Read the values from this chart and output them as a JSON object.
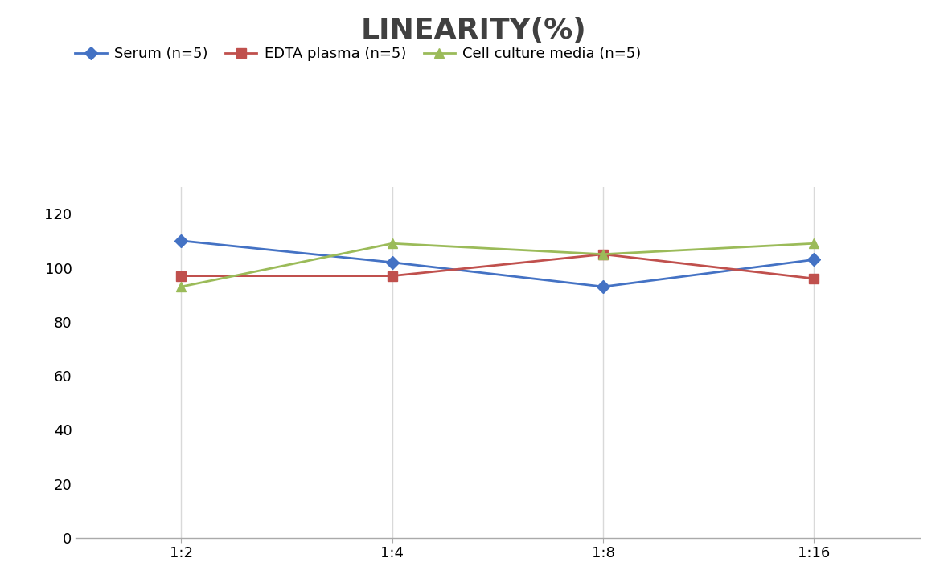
{
  "title": "LINEARITY(%)",
  "x_labels": [
    "1:2",
    "1:4",
    "1:8",
    "1:16"
  ],
  "x_positions": [
    0,
    1,
    2,
    3
  ],
  "series": [
    {
      "label": "Serum (n=5)",
      "values": [
        110,
        102,
        93,
        103
      ],
      "color": "#4472C4",
      "marker": "D",
      "markersize": 8
    },
    {
      "label": "EDTA plasma (n=5)",
      "values": [
        97,
        97,
        105,
        96
      ],
      "color": "#C0504D",
      "marker": "s",
      "markersize": 8
    },
    {
      "label": "Cell culture media (n=5)",
      "values": [
        93,
        109,
        105,
        109
      ],
      "color": "#9BBB59",
      "marker": "^",
      "markersize": 8
    }
  ],
  "ylim": [
    0,
    130
  ],
  "yticks": [
    0,
    20,
    40,
    60,
    80,
    100,
    120
  ],
  "background_color": "#FFFFFF",
  "grid_color": "#D9D9D9",
  "title_fontsize": 26,
  "legend_fontsize": 13,
  "tick_fontsize": 13
}
